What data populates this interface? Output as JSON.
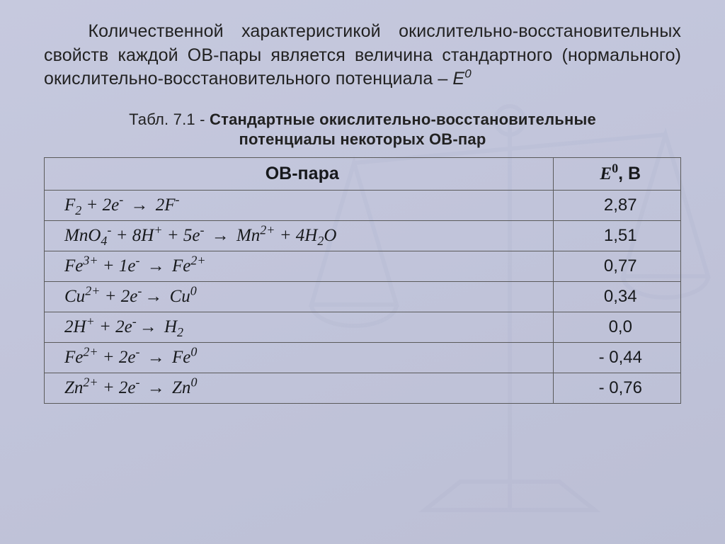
{
  "colors": {
    "bg_gradient_from": "#c6c9de",
    "bg_gradient_to": "#bcbfd5",
    "text": "#222222",
    "table_border": "#5a5a5a",
    "watermark_stroke": "#9aa0bf"
  },
  "typography": {
    "body_family": "Arial",
    "formula_family": "Times New Roman",
    "intro_fontsize_pt": 19,
    "caption_fontsize_pt": 17,
    "table_fontsize_pt": 18
  },
  "intro": {
    "text_prefix": "Количественной характеристикой окислительно-восстановительных свойств каждой ОВ-пары является величина стандартного (нормального) окислительно-восстановительного потенциала – ",
    "symbol_base": "E",
    "symbol_sup": "0"
  },
  "caption": {
    "prefix": "Табл. 7.1 - ",
    "bold": "Стандартные окислительно-восстановительные потенциалы некоторых ОВ-пар"
  },
  "table": {
    "type": "table",
    "columns": [
      {
        "key": "pair",
        "label": "ОВ-пара",
        "align": "left",
        "width_pct": 72
      },
      {
        "key": "e0",
        "label_base": "E",
        "label_sup": "0",
        "label_unit": ", В",
        "align": "center",
        "width_pct": 28
      }
    ],
    "rows": [
      {
        "pair_tokens": [
          {
            "t": "F",
            "sub": "2"
          },
          {
            "t": " + 2e"
          },
          {
            "sup": "-"
          },
          {
            "t": " "
          },
          {
            "arrow": "→"
          },
          {
            "t": " 2F"
          },
          {
            "sup": "-"
          }
        ],
        "e0": "2,87"
      },
      {
        "pair_tokens": [
          {
            "t": "MnO"
          },
          {
            "sub": "4"
          },
          {
            "sup": "-"
          },
          {
            "t": " + 8H"
          },
          {
            "sup": "+"
          },
          {
            "t": " + 5e"
          },
          {
            "sup": "-"
          },
          {
            "t": " "
          },
          {
            "arrow": "→"
          },
          {
            "t": " Mn"
          },
          {
            "sup": "2+"
          },
          {
            "t": " + 4H"
          },
          {
            "sub": "2"
          },
          {
            "t": "O"
          }
        ],
        "e0": "1,51"
      },
      {
        "pair_tokens": [
          {
            "t": "Fe"
          },
          {
            "sup": "3+"
          },
          {
            "t": " + 1e"
          },
          {
            "sup": "-"
          },
          {
            "t": " "
          },
          {
            "arrow": "→"
          },
          {
            "t": " Fe"
          },
          {
            "sup": "2+"
          }
        ],
        "e0": "0,77"
      },
      {
        "pair_tokens": [
          {
            "t": "Cu"
          },
          {
            "sup": "2+"
          },
          {
            "t": " + 2e"
          },
          {
            "sup": "-"
          },
          {
            "arrow": "→"
          },
          {
            "t": " Cu"
          },
          {
            "sup": "0"
          }
        ],
        "e0": "0,34"
      },
      {
        "pair_tokens": [
          {
            "t": "2H"
          },
          {
            "sup": "+"
          },
          {
            "t": " + 2e"
          },
          {
            "sup": "-"
          },
          {
            "arrow": "→"
          },
          {
            "t": " H"
          },
          {
            "sub": "2"
          }
        ],
        "e0": "0,0"
      },
      {
        "pair_tokens": [
          {
            "t": "Fe"
          },
          {
            "sup": "2+"
          },
          {
            "t": " + 2e"
          },
          {
            "sup": "-"
          },
          {
            "t": " "
          },
          {
            "arrow": "→"
          },
          {
            "t": " Fe"
          },
          {
            "sup": "0"
          }
        ],
        "e0": "- 0,44"
      },
      {
        "pair_tokens": [
          {
            "t": "Zn"
          },
          {
            "sup": "2+"
          },
          {
            "t": " + 2e"
          },
          {
            "sup": "-"
          },
          {
            "t": " "
          },
          {
            "arrow": "→"
          },
          {
            "t": " Zn"
          },
          {
            "sup": "0"
          }
        ],
        "e0": "- 0,76"
      }
    ]
  }
}
